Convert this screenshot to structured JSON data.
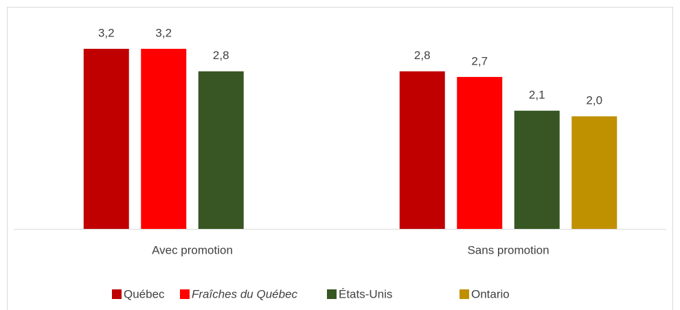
{
  "chart_data": {
    "type": "bar",
    "categories": [
      "Avec promotion",
      "Sans promotion"
    ],
    "series": [
      {
        "name": "Québec",
        "color": "#c00000",
        "values": [
          3.2,
          2.8
        ],
        "value_labels": [
          "3,2",
          "2,8"
        ]
      },
      {
        "name": "Fraîches du Québec",
        "color": "#ff0000",
        "values": [
          3.2,
          2.7
        ],
        "value_labels": [
          "3,2",
          "2,7"
        ]
      },
      {
        "name": "États-Unis",
        "color": "#375623",
        "values": [
          2.8,
          2.1
        ],
        "value_labels": [
          "2,8",
          "2,1"
        ]
      },
      {
        "name": "Ontario",
        "color": "#bf9000",
        "values": [
          null,
          2.0
        ],
        "value_labels": [
          null,
          "2,0"
        ]
      }
    ],
    "ylim": [
      0,
      4
    ],
    "legend": "bottom"
  }
}
